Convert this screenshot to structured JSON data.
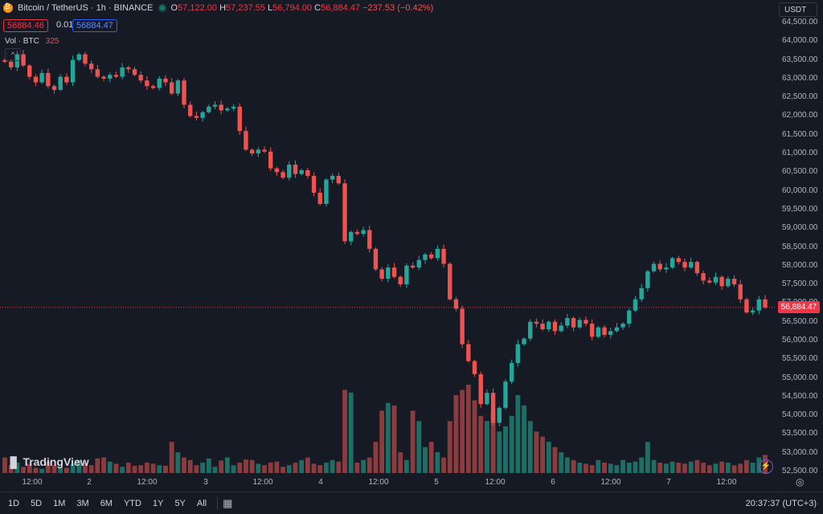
{
  "legend": {
    "symbol": "Bitcoin / TetherUS · 1h · BINANCE",
    "open_label": "O",
    "open": "57,122.00",
    "high_label": "H",
    "high": "57,237.55",
    "low_label": "L",
    "low": "56,794.00",
    "close_label": "C",
    "close": "56,884.47",
    "change": "−237.53 (−0.42%)"
  },
  "quote": {
    "bid": "56884.46",
    "spread": "0.01",
    "ask": "56884.47"
  },
  "volume": {
    "label": "Vol · BTC",
    "value": "325"
  },
  "collapse_glyph": "^",
  "currency": "USDT",
  "current_price_label": "56,884.47",
  "price_ticks": [
    "64,500.00",
    "64,000.00",
    "63,500.00",
    "63,000.00",
    "62,500.00",
    "62,000.00",
    "61,500.00",
    "61,000.00",
    "60,500.00",
    "60,000.00",
    "59,500.00",
    "59,000.00",
    "58,500.00",
    "58,000.00",
    "57,500.00",
    "57,000.00",
    "56,500.00",
    "56,000.00",
    "55,500.00",
    "55,000.00",
    "54,500.00",
    "54,000.00",
    "53,500.00",
    "53,000.00",
    "52,500.00"
  ],
  "time_labels": [
    "12:00",
    "2",
    "12:00",
    "3",
    "12:00",
    "4",
    "12:00",
    "5",
    "12:00",
    "6",
    "12:00",
    "7",
    "12:00"
  ],
  "brand": "TradingView",
  "bolt_glyph": "⚡",
  "ranges": [
    "1D",
    "5D",
    "1M",
    "3M",
    "6M",
    "YTD",
    "1Y",
    "5Y",
    "All"
  ],
  "clock": "20:37:37 (UTC+3)",
  "colors": {
    "up": "#26a69a",
    "down": "#ef5350",
    "vol_up": "#1f6e65",
    "vol_down": "#8a3c3e",
    "bg": "#161a25"
  },
  "chart_data": {
    "type": "candlestick",
    "price_range": [
      52500,
      64500
    ],
    "closes": [
      63450,
      63300,
      63650,
      63350,
      63050,
      62900,
      63150,
      62800,
      62700,
      63050,
      62900,
      63500,
      63650,
      63400,
      63250,
      63050,
      63000,
      63100,
      63050,
      63300,
      63250,
      63100,
      62950,
      62800,
      62750,
      63000,
      62900,
      62600,
      62950,
      62300,
      62000,
      61950,
      62100,
      62250,
      62300,
      62150,
      62200,
      62250,
      61600,
      61100,
      61000,
      61100,
      61050,
      60600,
      60500,
      60350,
      60700,
      60450,
      60550,
      60400,
      59950,
      59650,
      60300,
      60400,
      60200,
      58650,
      58900,
      58850,
      58950,
      58450,
      57900,
      57650,
      57950,
      57700,
      57500,
      58000,
      57950,
      58150,
      58300,
      58200,
      58450,
      58050,
      57100,
      56850,
      55900,
      55450,
      55100,
      54300,
      54600,
      53800,
      54200,
      54900,
      55400,
      55900,
      56050,
      56500,
      56450,
      56300,
      56500,
      56250,
      56400,
      56600,
      56350,
      56550,
      56450,
      56100,
      56350,
      56150,
      56250,
      56350,
      56450,
      56800,
      57100,
      57400,
      57850,
      58050,
      57900,
      57950,
      58200,
      58100,
      57950,
      58100,
      57800,
      57600,
      57550,
      57700,
      57450,
      57650,
      57500,
      57100,
      56750,
      56800,
      57100,
      56884
    ],
    "volumes": [
      30,
      15,
      20,
      12,
      18,
      10,
      8,
      22,
      15,
      12,
      10,
      18,
      25,
      20,
      15,
      28,
      30,
      22,
      18,
      12,
      20,
      14,
      15,
      20,
      18,
      15,
      14,
      60,
      40,
      30,
      25,
      15,
      20,
      28,
      12,
      24,
      30,
      15,
      20,
      26,
      25,
      18,
      15,
      20,
      22,
      12,
      15,
      20,
      25,
      30,
      18,
      15,
      20,
      25,
      22,
      160,
      155,
      20,
      25,
      30,
      60,
      120,
      135,
      130,
      40,
      25,
      120,
      100,
      50,
      60,
      40,
      30,
      100,
      150,
      160,
      170,
      140,
      110,
      100,
      120,
      80,
      90,
      110,
      150,
      130,
      100,
      80,
      70,
      60,
      50,
      40,
      30,
      25,
      20,
      18,
      15,
      25,
      20,
      18,
      15,
      25,
      20,
      22,
      30,
      60,
      25,
      20,
      18,
      22,
      20,
      18,
      22,
      25,
      20,
      15,
      18,
      22,
      20,
      15,
      18,
      25,
      20,
      30,
      35
    ]
  }
}
